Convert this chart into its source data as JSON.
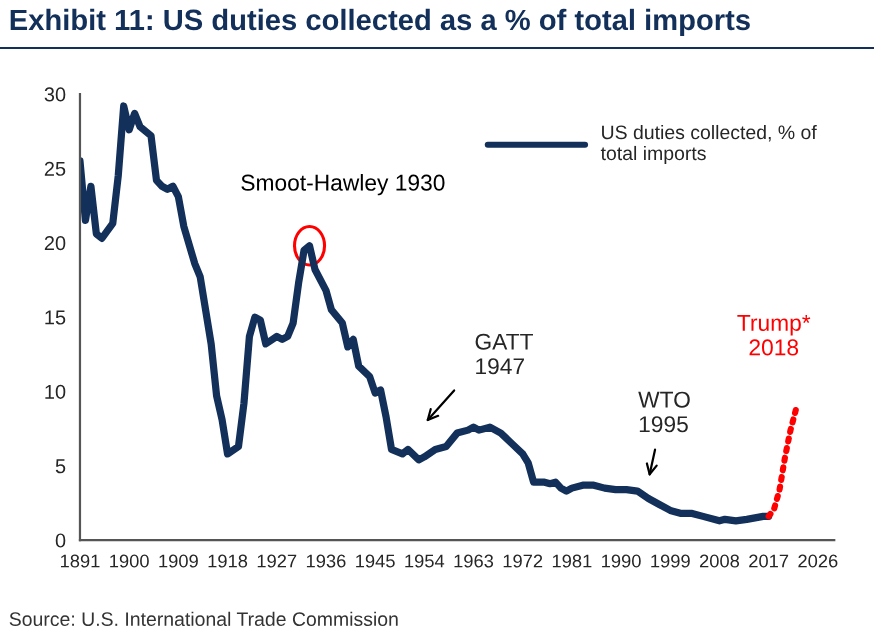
{
  "chart_data": {
    "type": "line",
    "title": "Exhibit 11: US duties collected as a % of total imports",
    "series": [
      {
        "name": "US duties collected, % of\ntotal imports",
        "color": "#13305a",
        "line_style": "solid",
        "x": [
          1891,
          1892,
          1893,
          1894,
          1895,
          1897,
          1898,
          1899,
          1900,
          1901,
          1902,
          1904,
          1905,
          1906,
          1907,
          1908,
          1909,
          1910,
          1912,
          1913,
          1915,
          1916,
          1917,
          1918,
          1920,
          1921,
          1922,
          1923,
          1924,
          1925,
          1927,
          1928,
          1929,
          1930,
          1931,
          1932,
          1933,
          1934,
          1936,
          1937,
          1939,
          1940,
          1941,
          1942,
          1944,
          1945,
          1946,
          1947,
          1948,
          1950,
          1951,
          1953,
          1954,
          1956,
          1958,
          1960,
          1962,
          1963,
          1964,
          1966,
          1968,
          1970,
          1972,
          1973,
          1974,
          1976,
          1977,
          1978,
          1979,
          1980,
          1981,
          1983,
          1985,
          1987,
          1989,
          1991,
          1993,
          1995,
          1997,
          1999,
          2001,
          2003,
          2005,
          2008,
          2009,
          2011,
          2013,
          2016,
          2017
        ],
        "values": [
          25.5,
          21.5,
          23.8,
          20.6,
          20.3,
          21.3,
          24.5,
          29.2,
          27.6,
          28.7,
          27.8,
          27.2,
          24.2,
          23.8,
          23.6,
          23.8,
          23.1,
          21.1,
          18.6,
          17.7,
          13.2,
          9.7,
          8.1,
          5.8,
          6.3,
          9.2,
          13.7,
          15.0,
          14.8,
          13.2,
          13.7,
          13.5,
          13.7,
          14.6,
          17.3,
          19.5,
          19.8,
          18.2,
          16.8,
          15.5,
          14.6,
          13.0,
          13.5,
          11.7,
          11.0,
          9.9,
          10.1,
          8.3,
          6.1,
          5.8,
          6.1,
          5.4,
          5.6,
          6.1,
          6.3,
          7.2,
          7.4,
          7.6,
          7.4,
          7.6,
          7.2,
          6.5,
          5.8,
          5.2,
          3.9,
          3.9,
          3.8,
          3.9,
          3.5,
          3.3,
          3.5,
          3.7,
          3.7,
          3.5,
          3.4,
          3.4,
          3.3,
          2.8,
          2.4,
          2.0,
          1.8,
          1.8,
          1.6,
          1.3,
          1.4,
          1.3,
          1.4,
          1.6,
          1.6
        ]
      },
      {
        "color": "#ff0000",
        "line_style": "dotted",
        "x": [
          2017,
          2018,
          2019,
          2020,
          2021,
          2022
        ],
        "values": [
          1.6,
          2.1,
          3.4,
          5.6,
          7.4,
          8.8
        ]
      }
    ],
    "xlim": [
      1891,
      2029
    ],
    "xticks": [
      1891,
      1900,
      1909,
      1918,
      1927,
      1936,
      1945,
      1954,
      1963,
      1972,
      1981,
      1990,
      1999,
      2008,
      2017,
      2026
    ],
    "ylim": [
      0,
      30
    ],
    "yticks": [
      0,
      5,
      10,
      15,
      20,
      25,
      30
    ],
    "grid": false,
    "legend": "top right",
    "marker": "none",
    "annotations": [
      {
        "text": "Smoot-Hawley 1930",
        "x": 1933,
        "y": 19.8
      },
      "GATT\n1947",
      "WTO\n1995",
      {
        "text": "Trump*\n2018",
        "x": 2022,
        "y": 8.8
      },
      "Source: U.S. International Trade Commission"
    ]
  }
}
